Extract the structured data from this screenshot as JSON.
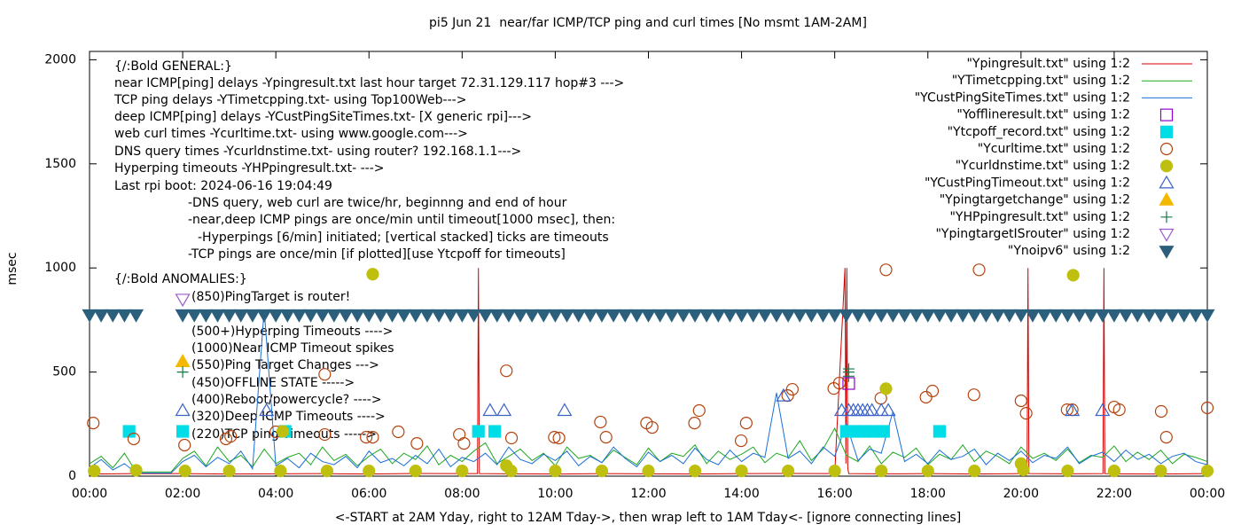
{
  "chart_data": {
    "type": "line",
    "title": "pi5 Jun 21  near/far ICMP/TCP ping and curl times [No msmt 1AM-2AM]",
    "x_label": "<-START at 2AM Yday, right to 12AM Tday->, then wrap left to 1AM Tday<- [ignore connecting lines]",
    "y_label": "msec",
    "xlim": [
      0,
      24
    ],
    "xticks": [
      {
        "value": 0,
        "label": "00:00"
      },
      {
        "value": 2,
        "label": "02:00"
      },
      {
        "value": 4,
        "label": "04:00"
      },
      {
        "value": 6,
        "label": "06:00"
      },
      {
        "value": 8,
        "label": "08:00"
      },
      {
        "value": 10,
        "label": "10:00"
      },
      {
        "value": 12,
        "label": "12:00"
      },
      {
        "value": 14,
        "label": "14:00"
      },
      {
        "value": 16,
        "label": "16:00"
      },
      {
        "value": 18,
        "label": "18:00"
      },
      {
        "value": 20,
        "label": "20:00"
      },
      {
        "value": 22,
        "label": "22:00"
      },
      {
        "value": 24,
        "label": "00:00"
      }
    ],
    "ylim": [
      0,
      2040
    ],
    "yticks": [
      0,
      500,
      1000,
      1500,
      2000
    ],
    "grid": false,
    "legend": "top right",
    "annotations": [
      "{/:Bold GENERAL:}",
      "near ICMP[ping] delays -Ypingresult.txt last hour target 72.31.129.117 hop#3 --->",
      "TCP ping delays -YTimetcpping.txt- using Top100Web--->",
      "deep ICMP[ping] delays -YCustPingSiteTimes.txt- [X generic rpi]--->",
      "web curl times -Ycurltime.txt- using www.google.com--->",
      "DNS query times -Ycurldnstime.txt- using router? 192.168.1.1--->",
      "Hyperping timeouts -YHPpingresult.txt- --->",
      "Last rpi boot: 2024-06-16 19:04:49",
      "-DNS query, web curl are twice/hr, beginnng and end of hour",
      "-near,deep ICMP pings are once/min until timeout[1000 msec], then:",
      "-Hyperpings [6/min] initiated; [vertical stacked] ticks are timeouts",
      "-TCP pings are once/min [if plotted][use Ytcpoff for timeouts]",
      "{/:Bold ANOMALIES:}",
      "(850)PingTarget is router!",
      "(500+)Hyperping Timeouts ---->",
      "(1000)Near ICMP Timeout spikes",
      "(550)Ping Target Changes --->",
      "(450)OFFLINE STATE ----->",
      "(400)Reboot/powercycle? ---->",
      "(320)Deep ICMP Timeouts ---->",
      "(220)TCP ping Timeouts ----->"
    ],
    "series": [
      {
        "name": "\"Ypingresult.txt\" using 1:2",
        "color": "#d40000",
        "style": "line",
        "x": [
          0,
          1,
          2,
          3,
          4,
          5,
          6,
          7,
          8,
          8.33,
          8.35,
          8.37,
          9,
          10,
          11,
          12,
          13,
          14,
          15,
          16,
          16.22,
          16.24,
          16.26,
          16.28,
          16.3,
          17,
          18,
          19,
          20,
          20.13,
          20.15,
          20.17,
          21,
          21.76,
          21.78,
          21.8,
          22,
          23,
          24
        ],
        "values": [
          10,
          12,
          12,
          10,
          11,
          12,
          10,
          13,
          12,
          12,
          1000,
          12,
          11,
          10,
          12,
          11,
          10,
          12,
          13,
          12,
          1000,
          60,
          1000,
          40,
          12,
          11,
          12,
          10,
          12,
          12,
          1000,
          12,
          11,
          12,
          1000,
          12,
          11,
          10,
          12
        ]
      },
      {
        "name": "\"YTimetcpping.txt\" using 1:2",
        "color": "#1ea81e",
        "style": "line",
        "x": [
          0,
          0.25,
          0.5,
          0.75,
          1,
          1.25,
          1.5,
          1.75,
          2,
          2.25,
          2.5,
          2.75,
          3,
          3.25,
          3.5,
          3.75,
          4,
          4.25,
          4.5,
          4.75,
          5,
          5.25,
          5.5,
          5.75,
          6,
          6.25,
          6.5,
          6.75,
          7,
          7.25,
          7.5,
          7.75,
          8,
          8.25,
          8.5,
          8.75,
          9,
          9.25,
          9.5,
          9.75,
          10,
          10.25,
          10.5,
          10.75,
          11,
          11.25,
          11.5,
          11.75,
          12,
          12.25,
          12.5,
          12.75,
          13,
          13.25,
          13.5,
          13.75,
          14,
          14.25,
          14.5,
          14.75,
          15,
          15.25,
          15.5,
          15.75,
          16,
          16.25,
          16.5,
          16.75,
          17,
          17.25,
          17.5,
          17.75,
          18,
          18.25,
          18.5,
          18.75,
          19,
          19.25,
          19.5,
          19.75,
          20,
          20.25,
          20.5,
          20.75,
          21,
          21.25,
          21.5,
          21.75,
          22,
          22.25,
          22.5,
          22.75,
          23,
          23.25,
          23.5,
          23.75,
          24
        ],
        "values": [
          60,
          95,
          40,
          110,
          20,
          20,
          20,
          20,
          85,
          120,
          50,
          140,
          70,
          100,
          45,
          130,
          60,
          90,
          110,
          55,
          140,
          75,
          105,
          50,
          95,
          130,
          60,
          110,
          80,
          145,
          55,
          100,
          70,
          120,
          160,
          60,
          95,
          130,
          75,
          110,
          50,
          140,
          85,
          100,
          65,
          125,
          90,
          55,
          135,
          70,
          110,
          95,
          150,
          60,
          120,
          80,
          105,
          140,
          65,
          110,
          90,
          170,
          75,
          130,
          230,
          100,
          70,
          145,
          60,
          115,
          90,
          135,
          55,
          105,
          80,
          150,
          70,
          120,
          95,
          60,
          140,
          85,
          110,
          75,
          130,
          65,
          100,
          90,
          145,
          70,
          115,
          80,
          125,
          60,
          105,
          90,
          70
        ]
      },
      {
        "name": "\"YCustPingSiteTimes.txt\" using 1:2",
        "color": "#1a6fd6",
        "style": "line",
        "x": [
          0,
          0.25,
          0.5,
          0.75,
          1,
          1.25,
          1.5,
          1.75,
          2,
          2.25,
          2.5,
          2.75,
          3,
          3.25,
          3.5,
          3.75,
          4,
          4.25,
          4.5,
          4.75,
          5,
          5.25,
          5.5,
          5.75,
          6,
          6.25,
          6.5,
          6.75,
          7,
          7.25,
          7.5,
          7.75,
          8,
          8.25,
          8.5,
          8.75,
          9,
          9.25,
          9.5,
          9.75,
          10,
          10.25,
          10.5,
          10.75,
          11,
          11.25,
          11.5,
          11.75,
          12,
          12.25,
          12.5,
          12.75,
          13,
          13.25,
          13.5,
          13.75,
          14,
          14.25,
          14.5,
          14.75,
          15,
          15.25,
          15.5,
          15.75,
          16,
          16.25,
          16.5,
          16.75,
          17,
          17.25,
          17.5,
          17.75,
          18,
          18.25,
          18.5,
          18.75,
          19,
          19.25,
          19.5,
          19.75,
          20,
          20.25,
          20.5,
          20.75,
          21,
          21.25,
          21.5,
          21.75,
          22,
          22.25,
          22.5,
          22.75,
          23,
          23.25,
          23.5,
          23.75,
          24
        ],
        "values": [
          40,
          80,
          30,
          60,
          15,
          15,
          15,
          15,
          70,
          100,
          45,
          90,
          60,
          120,
          35,
          800,
          50,
          85,
          40,
          110,
          70,
          55,
          95,
          40,
          120,
          65,
          85,
          50,
          100,
          60,
          130,
          45,
          90,
          70,
          110,
          55,
          140,
          80,
          60,
          105,
          75,
          120,
          50,
          95,
          65,
          140,
          85,
          45,
          115,
          70,
          100,
          60,
          135,
          80,
          55,
          125,
          70,
          110,
          90,
          400,
          85,
          120,
          60,
          140,
          95,
          250,
          75,
          130,
          110,
          310,
          70,
          105,
          60,
          125,
          80,
          95,
          130,
          55,
          110,
          75,
          120,
          65,
          100,
          85,
          140,
          60,
          95,
          115,
          70,
          125,
          80,
          105,
          60,
          95,
          110,
          70,
          55
        ]
      },
      {
        "name": "\"Yofflineresult.txt\" using 1:2",
        "color": "#9400d3",
        "style": "points",
        "marker": "square-open",
        "x": [
          16.3
        ],
        "values": [
          445
        ]
      },
      {
        "name": "\"Ytcpoff_record.txt\" using 1:2",
        "color": "#00dde6",
        "style": "points",
        "marker": "square",
        "x": [
          0.85,
          2.0,
          4.2,
          8.35,
          8.7,
          16.25,
          16.45,
          16.65,
          16.85,
          17.05,
          18.25
        ],
        "values": [
          215,
          215,
          215,
          215,
          215,
          215,
          215,
          215,
          215,
          215,
          215
        ]
      },
      {
        "name": "\"Ycurltime.txt\" using 1:2",
        "color": "#b4420c",
        "style": "points",
        "marker": "circle-open",
        "x": [
          0.08,
          0.95,
          2.04,
          2.93,
          3.03,
          4.0,
          5.05,
          5.05,
          5.94,
          6.08,
          6.63,
          7.03,
          7.94,
          8.04,
          8.95,
          9.06,
          9.98,
          10.08,
          10.97,
          11.09,
          11.96,
          12.08,
          12.99,
          13.09,
          13.99,
          14.1,
          14.99,
          15.09,
          15.98,
          16.1,
          16.99,
          17.1,
          17.96,
          18.1,
          18.99,
          19.1,
          20.0,
          20.11,
          20.99,
          21.1,
          22.0,
          22.11,
          23.01,
          23.12,
          24.0
        ],
        "values": [
          255,
          179,
          149,
          179,
          191,
          213,
          200,
          489,
          187,
          187,
          213,
          157,
          200,
          157,
          506,
          183,
          187,
          183,
          260,
          187,
          255,
          234,
          255,
          315,
          170,
          255,
          387,
          417,
          421,
          447,
          374,
          991,
          379,
          409,
          391,
          991,
          362,
          302,
          319,
          319,
          332,
          319,
          311,
          187,
          328
        ]
      },
      {
        "name": "\"Ycurldnstime.txt\" using 1:2",
        "color": "#bfbf10",
        "style": "points",
        "marker": "circle",
        "x": [
          0.1,
          1.0,
          2.05,
          3.0,
          4.1,
          4.15,
          5.1,
          6.0,
          6.08,
          7.0,
          8.0,
          8.95,
          9.05,
          10.0,
          11.0,
          12.0,
          13.0,
          14.0,
          15.0,
          16.0,
          17.0,
          17.1,
          18.0,
          19.0,
          20.0,
          20.05,
          21.0,
          21.12,
          22.0,
          23.0,
          24.0
        ],
        "values": [
          25,
          28,
          25,
          25,
          25,
          215,
          25,
          25,
          970,
          25,
          25,
          50,
          25,
          25,
          25,
          25,
          25,
          25,
          25,
          25,
          25,
          420,
          25,
          25,
          60,
          30,
          25,
          965,
          25,
          25,
          25
        ]
      },
      {
        "name": "\"YCustPingTimeout.txt\" using 1:2",
        "color": "#3a62c8",
        "style": "points",
        "marker": "triangle-up-open",
        "x": [
          2.0,
          3.8,
          8.6,
          8.9,
          10.2,
          14.9,
          16.15,
          16.3,
          16.4,
          16.5,
          16.6,
          16.7,
          16.8,
          17.0,
          17.15,
          21.1,
          21.75
        ],
        "values": [
          315,
          315,
          315,
          315,
          315,
          385,
          315,
          315,
          315,
          315,
          315,
          315,
          315,
          315,
          315,
          315,
          315
        ]
      },
      {
        "name": "\"Ypingtargetchange\" using 1:2",
        "color": "#f5b800",
        "style": "points",
        "marker": "triangle-up",
        "x": [
          2.0
        ],
        "values": [
          550
        ]
      },
      {
        "name": "\"YHPpingresult.txt\" using 1:2",
        "color": "#127a44",
        "style": "points",
        "marker": "plus",
        "x": [
          2.0,
          16.3,
          16.3,
          16.3
        ],
        "values": [
          500,
          480,
          500,
          515
        ]
      },
      {
        "name": "\"YpingtargetISrouter\" using 1:2",
        "color": "#9b59d0",
        "style": "points",
        "marker": "triangle-down-open",
        "x": [
          2.0
        ],
        "values": [
          850
        ]
      },
      {
        "name": "\"Ynoipv6\" using 1:2",
        "color": "#2c5f7c",
        "style": "points",
        "marker": "triangle-down",
        "x": [
          0,
          0.25,
          0.5,
          0.75,
          1.0,
          2,
          2.25,
          2.5,
          2.75,
          3,
          3.25,
          3.5,
          3.75,
          4,
          4.25,
          4.5,
          4.75,
          5,
          5.25,
          5.5,
          5.75,
          6,
          6.25,
          6.5,
          6.75,
          7,
          7.25,
          7.5,
          7.75,
          8,
          8.25,
          8.5,
          8.75,
          9,
          9.25,
          9.5,
          9.75,
          10,
          10.25,
          10.5,
          10.75,
          11,
          11.25,
          11.5,
          11.75,
          12,
          12.25,
          12.5,
          12.75,
          13,
          13.25,
          13.5,
          13.75,
          14,
          14.25,
          14.5,
          14.75,
          15,
          15.25,
          15.5,
          15.75,
          16,
          16.25,
          16.5,
          16.75,
          17,
          17.25,
          17.5,
          17.75,
          18,
          18.25,
          18.5,
          18.75,
          19,
          19.25,
          19.5,
          19.75,
          20,
          20.25,
          20.5,
          20.75,
          21,
          21.25,
          21.5,
          21.75,
          22,
          22.25,
          22.5,
          22.75,
          23,
          23.25,
          23.5,
          23.75,
          24
        ],
        "values": [
          775,
          775,
          775,
          775,
          775,
          775,
          775,
          775,
          775,
          775,
          775,
          775,
          775,
          775,
          775,
          775,
          775,
          775,
          775,
          775,
          775,
          775,
          775,
          775,
          775,
          775,
          775,
          775,
          775,
          775,
          775,
          775,
          775,
          775,
          775,
          775,
          775,
          775,
          775,
          775,
          775,
          775,
          775,
          775,
          775,
          775,
          775,
          775,
          775,
          775,
          775,
          775,
          775,
          775,
          775,
          775,
          775,
          775,
          775,
          775,
          775,
          775,
          775,
          775,
          775,
          775,
          775,
          775,
          775,
          775,
          775,
          775,
          775,
          775,
          775,
          775,
          775,
          775,
          775,
          775,
          775,
          775,
          775,
          775,
          775,
          775,
          775,
          775,
          775,
          775,
          775,
          775,
          775,
          775
        ]
      }
    ]
  }
}
